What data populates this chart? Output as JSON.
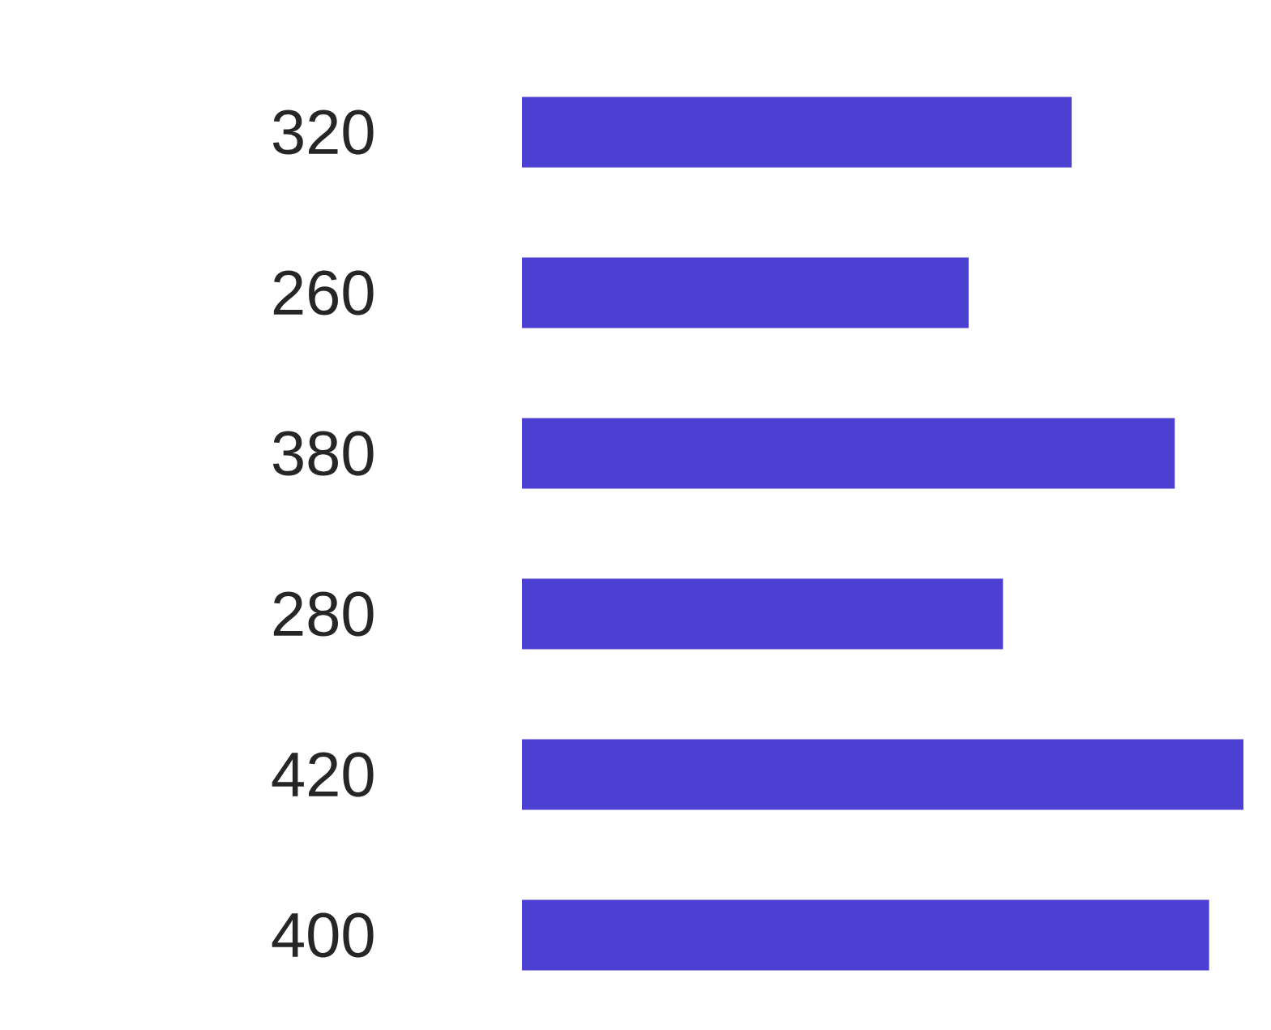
{
  "chart_data": {
    "type": "bar",
    "orientation": "horizontal",
    "categories": [
      null,
      null,
      null,
      null,
      null,
      null
    ],
    "values": [
      320,
      260,
      380,
      280,
      420,
      400
    ],
    "color": "#4b40d2",
    "data_labels": true,
    "xlim": [
      0,
      420
    ]
  }
}
